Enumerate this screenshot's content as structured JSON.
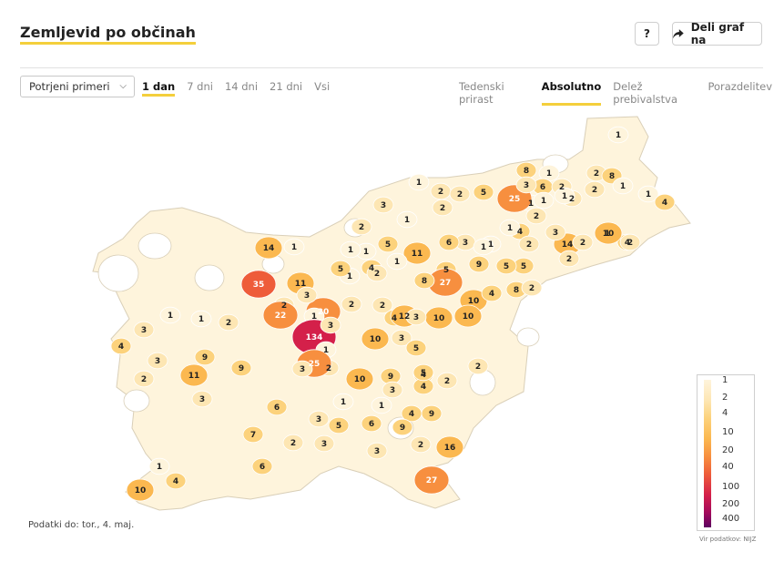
{
  "header": {
    "title": "Zemljevid po občinah",
    "help_label": "?",
    "share_label": "Deli graf na"
  },
  "controls": {
    "metric_select": "Potrjeni primeri",
    "period_tabs": [
      {
        "label": "1 dan",
        "active": true
      },
      {
        "label": "7 dni",
        "active": false
      },
      {
        "label": "14 dni",
        "active": false
      },
      {
        "label": "21 dni",
        "active": false
      },
      {
        "label": "Vsi",
        "active": false
      }
    ],
    "mode_tabs": [
      {
        "label": "Tedenski prirast",
        "active": false
      },
      {
        "label": "Absolutno",
        "active": true
      },
      {
        "label": "Delež prebivalstva",
        "active": false
      },
      {
        "label": "Porazdelitev",
        "active": false
      }
    ]
  },
  "legend": {
    "labels": [
      "1",
      "2",
      "4",
      "10",
      "20",
      "40",
      "100",
      "200",
      "400"
    ],
    "colors": [
      "#fef4dc",
      "#fde6b3",
      "#fcd27c",
      "#fbb850",
      "#f78f3f",
      "#ee5c3a",
      "#d4204a",
      "#a30a5c",
      "#5c0260"
    ]
  },
  "source_text": "Vir podatkov: NIJZ",
  "footnote": "Podatki do: tor., 4. maj.",
  "map_values": [
    "1",
    "2",
    "8",
    "1",
    "6",
    "1",
    "2",
    "2",
    "1",
    "8",
    "2",
    "1",
    "1",
    "4",
    "25",
    "1",
    "2",
    "3",
    "1",
    "2",
    "2",
    "2",
    "3",
    "5",
    "1",
    "2",
    "4",
    "1",
    "3",
    "1",
    "1",
    "14",
    "2",
    "1",
    "4",
    "3",
    "2",
    "10",
    "2",
    "5",
    "6",
    "1",
    "5",
    "5",
    "9",
    "14",
    "1",
    "1",
    "11",
    "4",
    "1",
    "2",
    "5",
    "1",
    "9",
    "27",
    "8",
    "2",
    "10",
    "8",
    "4",
    "2",
    "35",
    "11",
    "20",
    "2",
    "2",
    "10",
    "3",
    "10",
    "4",
    "2",
    "3",
    "12",
    "3",
    "10",
    "1",
    "22",
    "134",
    "3",
    "5",
    "3",
    "11",
    "9",
    "9",
    "1",
    "2",
    "25",
    "10",
    "9",
    "4",
    "3",
    "1",
    "3",
    "5",
    "4",
    "1",
    "6",
    "2",
    "3",
    "2",
    "9",
    "16",
    "6",
    "5",
    "4",
    "3",
    "3",
    "5",
    "7",
    "2",
    "3",
    "9",
    "2",
    "2",
    "1",
    "4",
    "6",
    "27",
    "10",
    "4",
    "3",
    "1",
    "1",
    "2",
    "4",
    "3"
  ]
}
